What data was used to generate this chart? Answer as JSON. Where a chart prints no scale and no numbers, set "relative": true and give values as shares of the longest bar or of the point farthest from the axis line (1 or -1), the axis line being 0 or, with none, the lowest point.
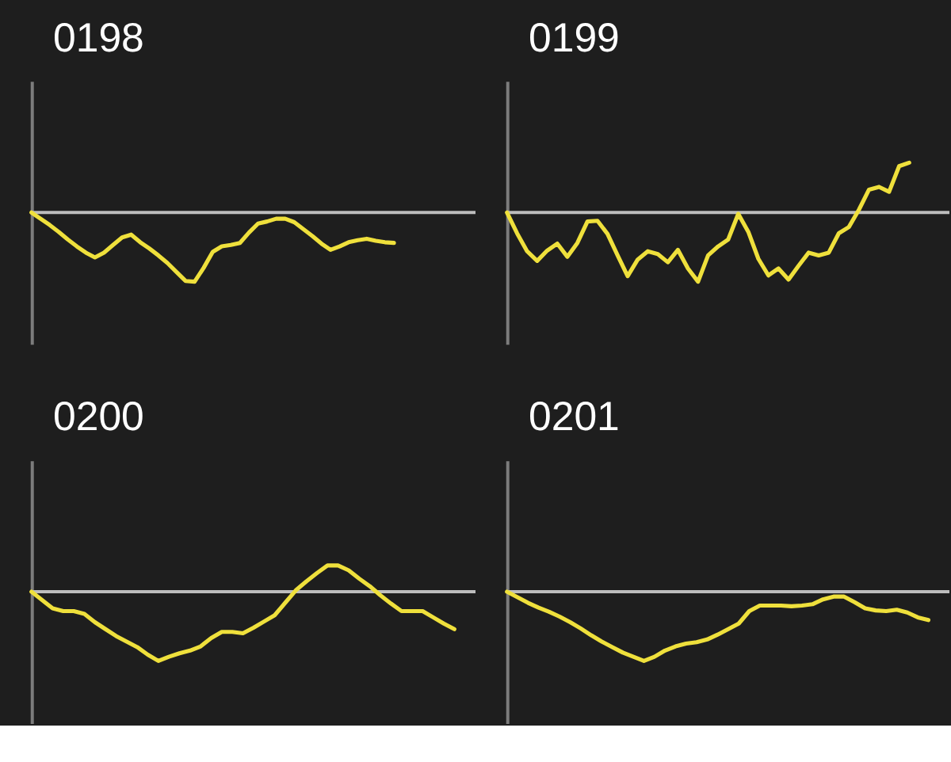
{
  "chart_data": [
    {
      "type": "line",
      "title": "0198",
      "relative": true,
      "categories": [
        null,
        null,
        null,
        null,
        null,
        null,
        null,
        null,
        null,
        null,
        null,
        null,
        null,
        null,
        null,
        null,
        null,
        null,
        null,
        null,
        null,
        null,
        null,
        null,
        null,
        null,
        null,
        null,
        null,
        null,
        null,
        null,
        null,
        null,
        null,
        null,
        null,
        null,
        null,
        null,
        null,
        null,
        null,
        null,
        null,
        null,
        null,
        null,
        null,
        null
      ],
      "series": [
        {
          "color": "#efe03c",
          "values": [
            0,
            -0.09,
            -0.18,
            -0.28,
            -0.39,
            -0.49,
            -0.58,
            -0.65,
            -0.58,
            -0.47,
            -0.36,
            -0.32,
            -0.43,
            -0.52,
            -0.62,
            -0.73,
            -0.86,
            -0.99,
            -1,
            -0.8,
            -0.57,
            -0.49,
            -0.47,
            -0.44,
            -0.29,
            -0.16,
            -0.13,
            -0.09,
            -0.09,
            -0.14,
            -0.24,
            -0.34,
            -0.45,
            -0.54,
            -0.49,
            -0.43,
            -0.4,
            -0.38,
            -0.41,
            -0.43,
            -0.44,
            null,
            null,
            null,
            null,
            null,
            null,
            null,
            null,
            null
          ]
        }
      ]
    },
    {
      "type": "line",
      "title": "0199",
      "relative": true,
      "categories": [
        null,
        null,
        null,
        null,
        null,
        null,
        null,
        null,
        null,
        null,
        null,
        null,
        null,
        null,
        null,
        null,
        null,
        null,
        null,
        null,
        null,
        null,
        null,
        null,
        null,
        null,
        null,
        null,
        null,
        null,
        null,
        null,
        null,
        null,
        null,
        null,
        null,
        null,
        null,
        null,
        null,
        null,
        null,
        null,
        null
      ],
      "series": [
        {
          "color": "#efe03c",
          "values": [
            0,
            -0.3,
            -0.56,
            -0.7,
            -0.55,
            -0.45,
            -0.64,
            -0.44,
            -0.13,
            -0.12,
            -0.31,
            -0.62,
            -0.92,
            -0.68,
            -0.56,
            -0.6,
            -0.72,
            -0.54,
            -0.81,
            -1,
            -0.62,
            -0.49,
            -0.39,
            -0.02,
            -0.28,
            -0.67,
            -0.91,
            -0.81,
            -0.97,
            -0.77,
            -0.58,
            -0.62,
            -0.58,
            -0.3,
            -0.21,
            0.04,
            0.33,
            0.37,
            0.3,
            0.67,
            0.72,
            null,
            null,
            null,
            null
          ]
        }
      ]
    },
    {
      "type": "line",
      "title": "0200",
      "relative": true,
      "categories": [
        null,
        null,
        null,
        null,
        null,
        null,
        null,
        null,
        null,
        null,
        null,
        null,
        null,
        null,
        null,
        null,
        null,
        null,
        null,
        null,
        null,
        null,
        null,
        null,
        null,
        null,
        null,
        null,
        null,
        null,
        null,
        null,
        null,
        null,
        null,
        null,
        null,
        null,
        null,
        null,
        null,
        null,
        null
      ],
      "series": [
        {
          "color": "#efe03c",
          "values": [
            0,
            -0.12,
            -0.24,
            -0.28,
            -0.28,
            -0.32,
            -0.44,
            -0.54,
            -0.64,
            -0.72,
            -0.8,
            -0.91,
            -1,
            -0.94,
            -0.89,
            -0.85,
            -0.79,
            -0.67,
            -0.58,
            -0.58,
            -0.6,
            -0.52,
            -0.43,
            -0.34,
            -0.16,
            0.02,
            0.15,
            0.27,
            0.38,
            0.38,
            0.31,
            0.19,
            0.08,
            -0.05,
            -0.17,
            -0.28,
            -0.28,
            -0.28,
            -0.37,
            -0.46,
            -0.54,
            null,
            null
          ]
        }
      ]
    },
    {
      "type": "line",
      "title": "0201",
      "relative": true,
      "categories": [
        null,
        null,
        null,
        null,
        null,
        null,
        null,
        null,
        null,
        null,
        null,
        null,
        null,
        null,
        null,
        null,
        null,
        null,
        null,
        null,
        null,
        null,
        null,
        null,
        null,
        null,
        null,
        null,
        null,
        null,
        null,
        null,
        null,
        null,
        null,
        null,
        null,
        null,
        null,
        null,
        null,
        null,
        null
      ],
      "series": [
        {
          "color": "#efe03c",
          "values": [
            0,
            -0.08,
            -0.16,
            -0.23,
            -0.29,
            -0.36,
            -0.44,
            -0.53,
            -0.63,
            -0.72,
            -0.8,
            -0.88,
            -0.94,
            -1,
            -0.94,
            -0.85,
            -0.79,
            -0.75,
            -0.73,
            -0.69,
            -0.62,
            -0.54,
            -0.46,
            -0.28,
            -0.2,
            -0.2,
            -0.2,
            -0.21,
            -0.2,
            -0.18,
            -0.11,
            -0.07,
            -0.07,
            -0.15,
            -0.24,
            -0.27,
            -0.28,
            -0.26,
            -0.3,
            -0.37,
            -0.41,
            null,
            null
          ]
        }
      ]
    }
  ]
}
